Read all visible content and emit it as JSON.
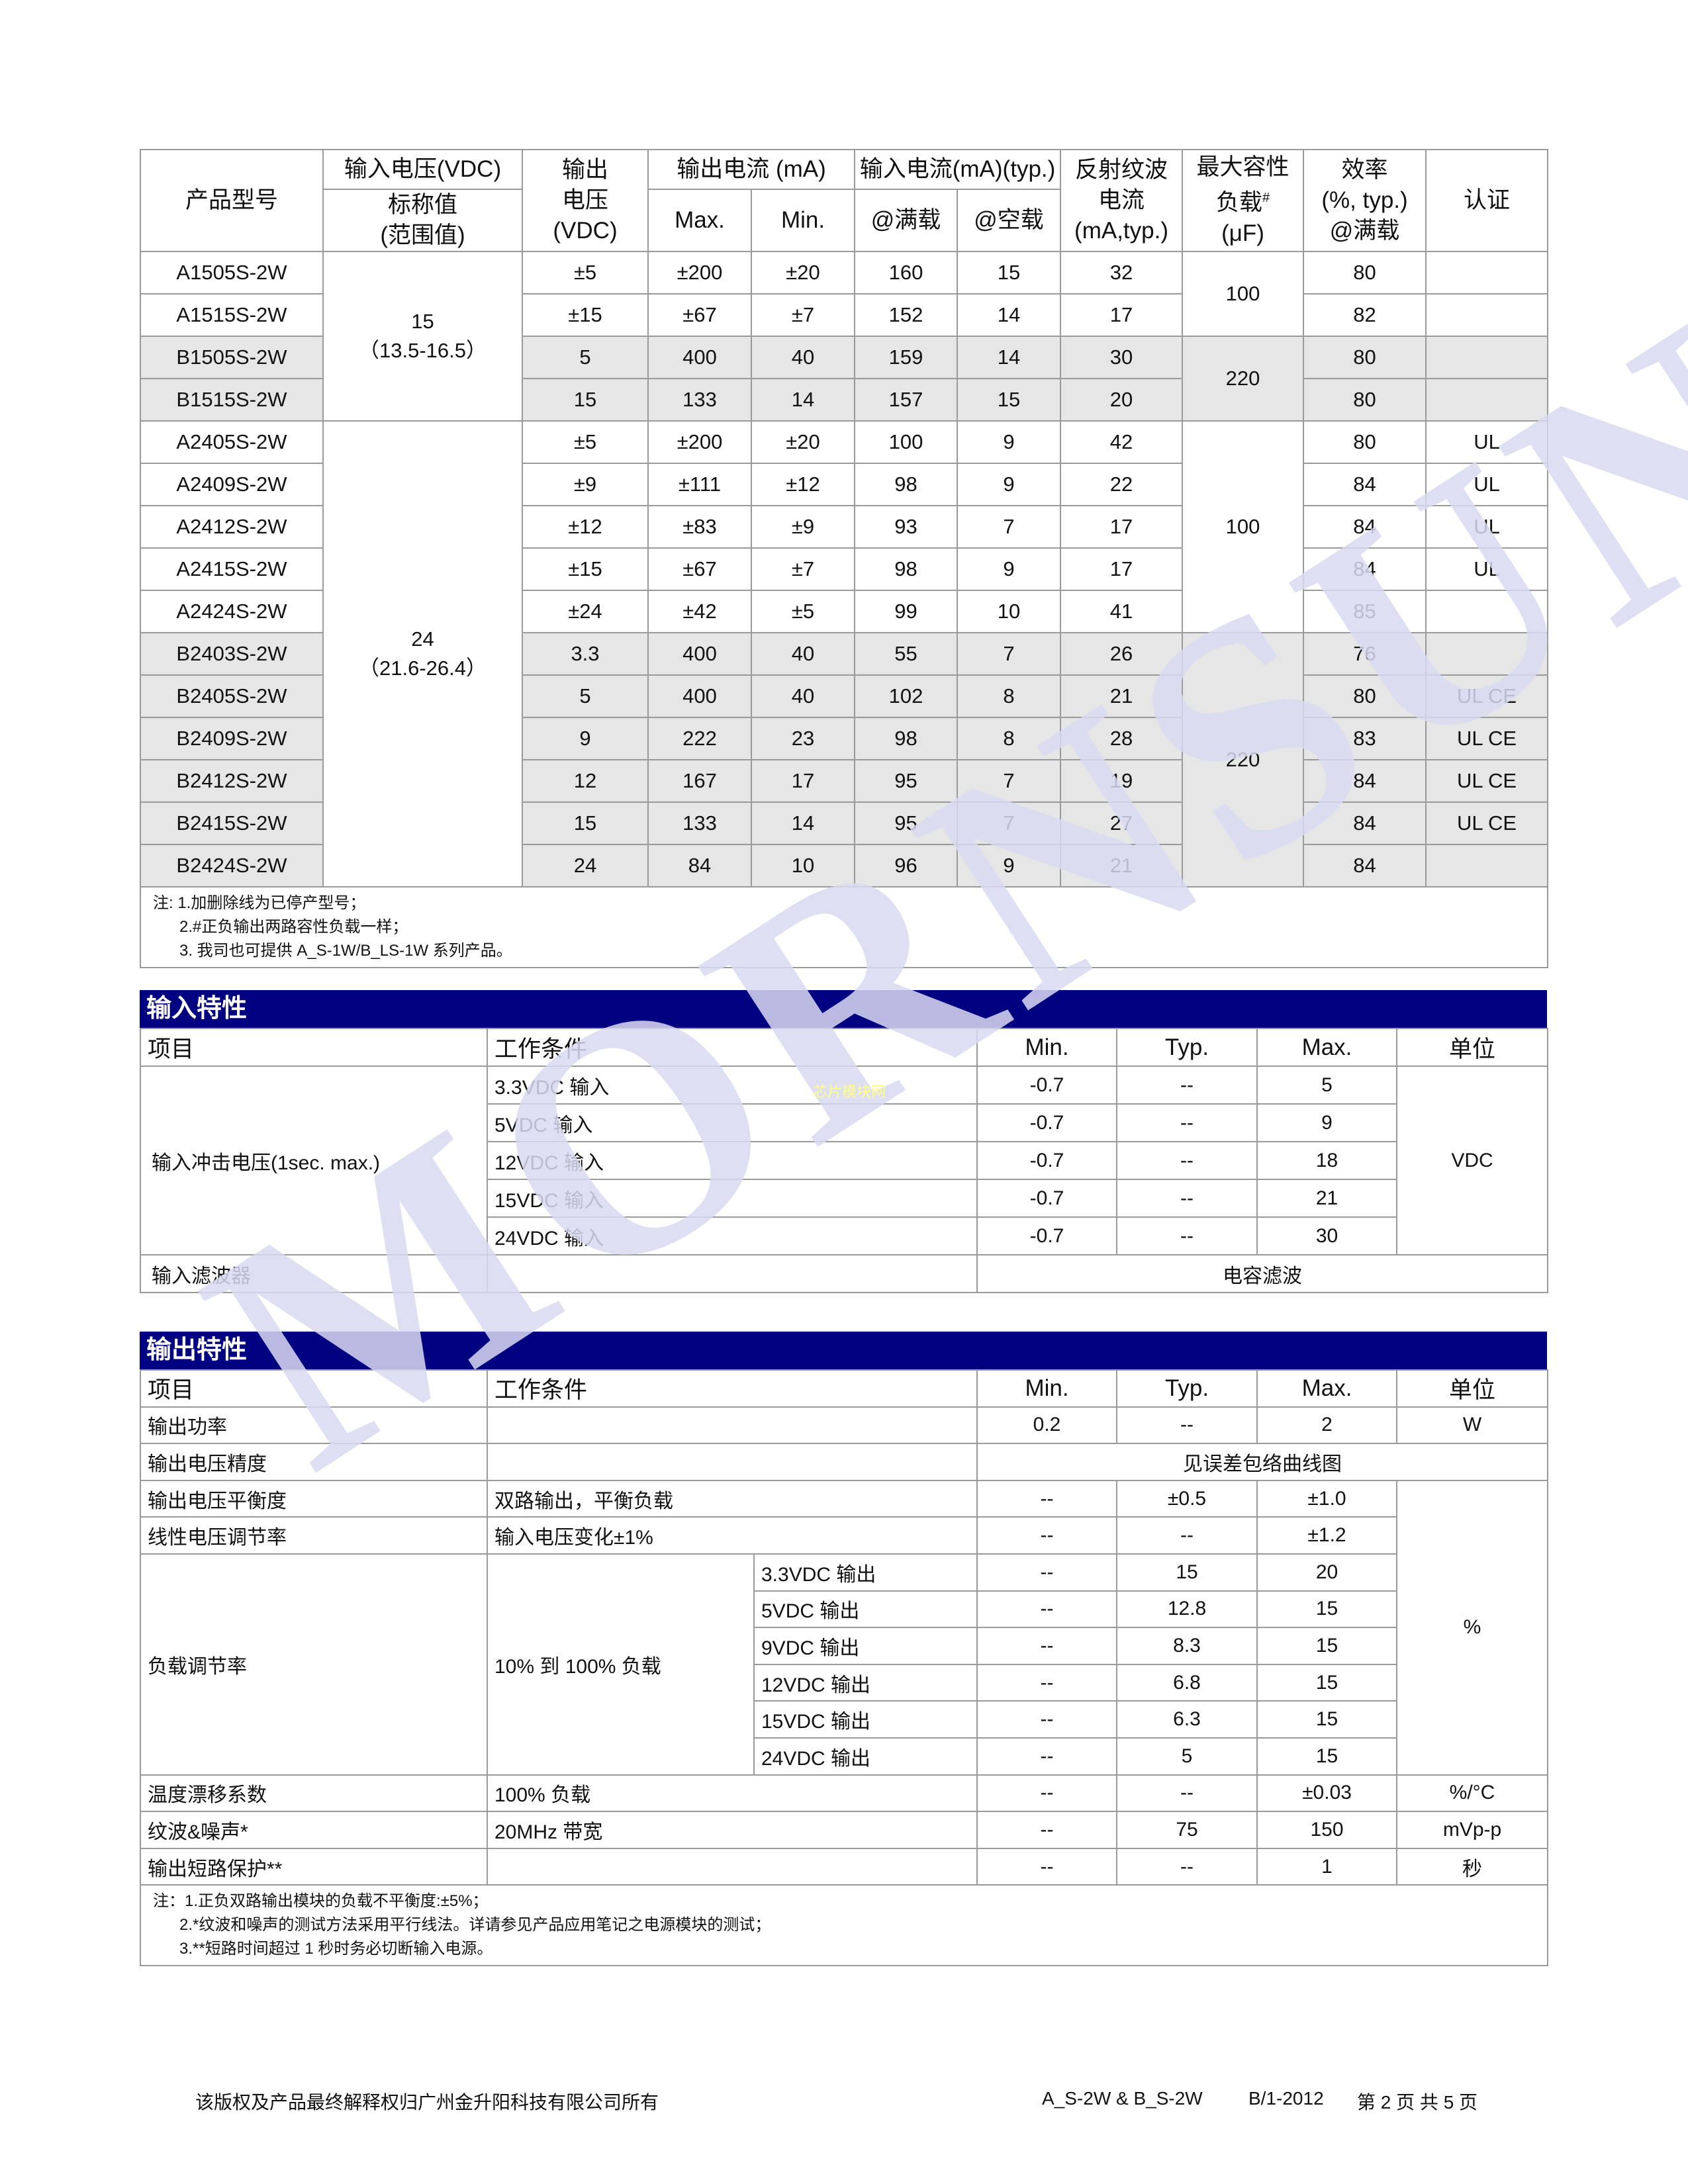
{
  "watermark": {
    "text": "MORNSUN",
    "color": "#d9d9f2",
    "site_text": "芯片模块网"
  },
  "spec_table": {
    "headers": {
      "model": "产品型号",
      "vin": "输入电压(VDC)",
      "vin_sub": [
        "标称值",
        "(范围值)"
      ],
      "vout": [
        "输出",
        "电压",
        "(VDC)"
      ],
      "iout": "输出电流 (mA)",
      "iout_max": "Max.",
      "iout_min": "Min.",
      "iin": "输入电流(mA)(typ.)",
      "iin_full": "@满载",
      "iin_noload": "@空载",
      "ripple": [
        "反射纹波",
        "电流",
        "(mA,typ.)"
      ],
      "cap": [
        "最大容性",
        "负载",
        "#",
        "(μF)"
      ],
      "eff": [
        "效率",
        "(%, typ.)",
        "@满载"
      ],
      "cert": "认证"
    },
    "vin_groups": [
      {
        "nominal": "15",
        "range": "（13.5-16.5）",
        "rows": 4
      },
      {
        "nominal": "24",
        "range": "（21.6-26.4）",
        "rows": 11
      }
    ],
    "cap_groups": [
      {
        "value": "100",
        "rows": 2,
        "shaded": false
      },
      {
        "value": "220",
        "rows": 2,
        "shaded": true
      },
      {
        "value": "100",
        "rows": 5,
        "shaded": false
      },
      {
        "value": "220",
        "rows": 6,
        "shaded": true
      }
    ],
    "rows": [
      {
        "model": "A1505S-2W",
        "vout": "±5",
        "imax": "±200",
        "imin": "±20",
        "iin_full": "160",
        "iin_noload": "15",
        "ripple": "32",
        "eff": "80",
        "cert": "",
        "shaded": false
      },
      {
        "model": "A1515S-2W",
        "vout": "±15",
        "imax": "±67",
        "imin": "±7",
        "iin_full": "152",
        "iin_noload": "14",
        "ripple": "17",
        "eff": "82",
        "cert": "",
        "shaded": false
      },
      {
        "model": "B1505S-2W",
        "vout": "5",
        "imax": "400",
        "imin": "40",
        "iin_full": "159",
        "iin_noload": "14",
        "ripple": "30",
        "eff": "80",
        "cert": "",
        "shaded": true
      },
      {
        "model": "B1515S-2W",
        "vout": "15",
        "imax": "133",
        "imin": "14",
        "iin_full": "157",
        "iin_noload": "15",
        "ripple": "20",
        "eff": "80",
        "cert": "",
        "shaded": true
      },
      {
        "model": "A2405S-2W",
        "vout": "±5",
        "imax": "±200",
        "imin": "±20",
        "iin_full": "100",
        "iin_noload": "9",
        "ripple": "42",
        "eff": "80",
        "cert": "UL",
        "shaded": false
      },
      {
        "model": "A2409S-2W",
        "vout": "±9",
        "imax": "±111",
        "imin": "±12",
        "iin_full": "98",
        "iin_noload": "9",
        "ripple": "22",
        "eff": "84",
        "cert": "UL",
        "shaded": false
      },
      {
        "model": "A2412S-2W",
        "vout": "±12",
        "imax": "±83",
        "imin": "±9",
        "iin_full": "93",
        "iin_noload": "7",
        "ripple": "17",
        "eff": "84",
        "cert": "UL",
        "shaded": false
      },
      {
        "model": "A2415S-2W",
        "vout": "±15",
        "imax": "±67",
        "imin": "±7",
        "iin_full": "98",
        "iin_noload": "9",
        "ripple": "17",
        "eff": "84",
        "cert": "UL",
        "shaded": false
      },
      {
        "model": "A2424S-2W",
        "vout": "±24",
        "imax": "±42",
        "imin": "±5",
        "iin_full": "99",
        "iin_noload": "10",
        "ripple": "41",
        "eff": "85",
        "cert": "",
        "shaded": false
      },
      {
        "model": "B2403S-2W",
        "vout": "3.3",
        "imax": "400",
        "imin": "40",
        "iin_full": "55",
        "iin_noload": "7",
        "ripple": "26",
        "eff": "76",
        "cert": "",
        "shaded": true
      },
      {
        "model": "B2405S-2W",
        "vout": "5",
        "imax": "400",
        "imin": "40",
        "iin_full": "102",
        "iin_noload": "8",
        "ripple": "21",
        "eff": "80",
        "cert": "UL CE",
        "shaded": true
      },
      {
        "model": "B2409S-2W",
        "vout": "9",
        "imax": "222",
        "imin": "23",
        "iin_full": "98",
        "iin_noload": "8",
        "ripple": "28",
        "eff": "83",
        "cert": "UL CE",
        "shaded": true
      },
      {
        "model": "B2412S-2W",
        "vout": "12",
        "imax": "167",
        "imin": "17",
        "iin_full": "95",
        "iin_noload": "7",
        "ripple": "19",
        "eff": "84",
        "cert": "UL CE",
        "shaded": true
      },
      {
        "model": "B2415S-2W",
        "vout": "15",
        "imax": "133",
        "imin": "14",
        "iin_full": "95",
        "iin_noload": "7",
        "ripple": "27",
        "eff": "84",
        "cert": "UL CE",
        "shaded": true
      },
      {
        "model": "B2424S-2W",
        "vout": "24",
        "imax": "84",
        "imin": "10",
        "iin_full": "96",
        "iin_noload": "9",
        "ripple": "21",
        "eff": "84",
        "cert": "",
        "shaded": true
      }
    ],
    "notes": [
      "注: 1.加删除线为已停产型号；",
      "2.#正负输出两路容性负载一样；",
      "3.  我司也可提供 A_S-1W/B_LS-1W 系列产品。"
    ]
  },
  "input_section": {
    "title": "输入特性",
    "headers": [
      "项目",
      "工作条件",
      "Min.",
      "Typ.",
      "Max.",
      "单位"
    ],
    "surge": {
      "item": "输入冲击电压(1sec. max.)",
      "unit": "VDC",
      "rows": [
        {
          "cond": "3.3VDC  输入",
          "min": "-0.7",
          "typ": "--",
          "max": "5"
        },
        {
          "cond": "5VDC 输入",
          "min": "-0.7",
          "typ": "--",
          "max": "9"
        },
        {
          "cond": "12VDC 输入",
          "min": "-0.7",
          "typ": "--",
          "max": "18"
        },
        {
          "cond": "15VDC  输入",
          "min": "-0.7",
          "typ": "--",
          "max": "21"
        },
        {
          "cond": "24VDC  输入",
          "min": "-0.7",
          "typ": "--",
          "max": "30"
        }
      ]
    },
    "filter": {
      "item": "输入滤波器",
      "value": "电容滤波"
    }
  },
  "output_section": {
    "title": "输出特性",
    "headers": [
      "项目",
      "工作条件",
      "Min.",
      "Typ.",
      "Max.",
      "单位"
    ],
    "power": {
      "item": "输出功率",
      "min": "0.2",
      "typ": "--",
      "max": "2",
      "unit": "W"
    },
    "accuracy": {
      "item": "输出电压精度",
      "value": "见误差包络曲线图"
    },
    "balance": {
      "item": "输出电压平衡度",
      "cond": "双路输出，平衡负载",
      "min": "--",
      "typ": "±0.5",
      "max": "±1.0"
    },
    "line_reg": {
      "item": "线性电压调节率",
      "cond": "输入电压变化±1%",
      "min": "--",
      "typ": "--",
      "max": "±1.2"
    },
    "percent_unit": "%",
    "load_reg": {
      "item": "负载调节率",
      "cond": "10%  到 100%  负载",
      "rows": [
        {
          "sub": "3.3VDC 输出",
          "min": "--",
          "typ": "15",
          "max": "20"
        },
        {
          "sub": "5VDC 输出",
          "min": "--",
          "typ": "12.8",
          "max": "15"
        },
        {
          "sub": "9VDC 输出",
          "min": "--",
          "typ": "8.3",
          "max": "15"
        },
        {
          "sub": "12VDC 输出",
          "min": "--",
          "typ": "6.8",
          "max": "15"
        },
        {
          "sub": "15VDC 输出",
          "min": "--",
          "typ": "6.3",
          "max": "15"
        },
        {
          "sub": "24VDC 输出",
          "min": "--",
          "typ": "5",
          "max": "15"
        }
      ]
    },
    "temp": {
      "item": "温度漂移系数",
      "cond": "100%  负载",
      "min": "--",
      "typ": "--",
      "max": "±0.03",
      "unit": "%/°C"
    },
    "ripple": {
      "item": "纹波&噪声*",
      "cond": "20MHz  带宽",
      "min": "--",
      "typ": "75",
      "max": "150",
      "unit": "mVp-p"
    },
    "short": {
      "item": "输出短路保护**",
      "cond": "",
      "min": "--",
      "typ": "--",
      "max": "1",
      "unit": "秒"
    },
    "notes": [
      "注：1.正负双路输出模块的负载不平衡度:±5%；",
      "2.*纹波和噪声的测试方法采用平行线法。详请参见产品应用笔记之电源模块的测试；",
      "3.**短路时间超过 1 秒时务必切断输入电源。"
    ]
  },
  "footer": {
    "copyright": "该版权及产品最终解释权归广州金升阳科技有限公司所有",
    "series": "A_S-2W & B_S-2W",
    "revision": "B/1-2012",
    "page": "第  2  页  共  5  页"
  },
  "colors": {
    "section_bar": "#000080",
    "shaded_row": "#e6e6e6",
    "border": "#9a9a9a"
  }
}
